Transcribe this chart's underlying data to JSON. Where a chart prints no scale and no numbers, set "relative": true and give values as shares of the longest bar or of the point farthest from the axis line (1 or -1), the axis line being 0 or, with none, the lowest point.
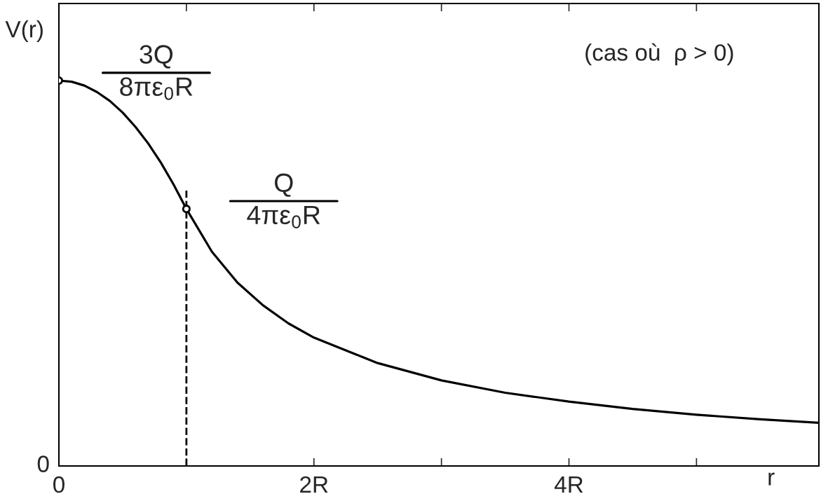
{
  "chart_data": {
    "type": "line",
    "relative": true,
    "xlabel": "r",
    "ylabel": "V(r)",
    "xlim": [
      0,
      5.96
    ],
    "xticks": [
      0,
      {
        "value": 1,
        "label": null
      },
      {
        "value": 2,
        "label": "2R"
      },
      {
        "value": 3,
        "label": null
      },
      {
        "value": 4,
        "label": "4R"
      },
      {
        "value": 5,
        "label": null
      }
    ],
    "series": [
      {
        "color": "#000000",
        "x": [
          0,
          0.1,
          0.2,
          0.3,
          0.4,
          0.5,
          0.6,
          0.7,
          0.8,
          0.9,
          1,
          1.2,
          1.4,
          1.6,
          1.8,
          2,
          2.5,
          3,
          3.5,
          4,
          4.5,
          5,
          5.5,
          5.96
        ],
        "values": [
          1,
          0.997,
          0.987,
          0.97,
          0.947,
          0.917,
          0.88,
          0.837,
          0.787,
          0.73,
          0.667,
          0.556,
          0.476,
          0.417,
          0.37,
          0.333,
          0.267,
          0.222,
          0.19,
          0.167,
          0.148,
          0.133,
          0.121,
          0.112
        ]
      },
      {
        "type": "scatter",
        "color": "#000000",
        "marker": "circle",
        "x": [
          0,
          1
        ],
        "values": [
          1,
          0.667
        ]
      }
    ],
    "ref_lines": [
      {
        "axis": "x",
        "value": 1,
        "line_style": "dashed",
        "color": "#000000"
      }
    ],
    "annotations": [
      {
        "text": "3Q\n8πε$_{0}$R",
        "x": 0,
        "y": 1
      },
      {
        "text": "Q\n4πε$_{0}$R",
        "x": 1,
        "y": 0.667
      },
      "0",
      "(cas où  ρ > 0)"
    ]
  }
}
